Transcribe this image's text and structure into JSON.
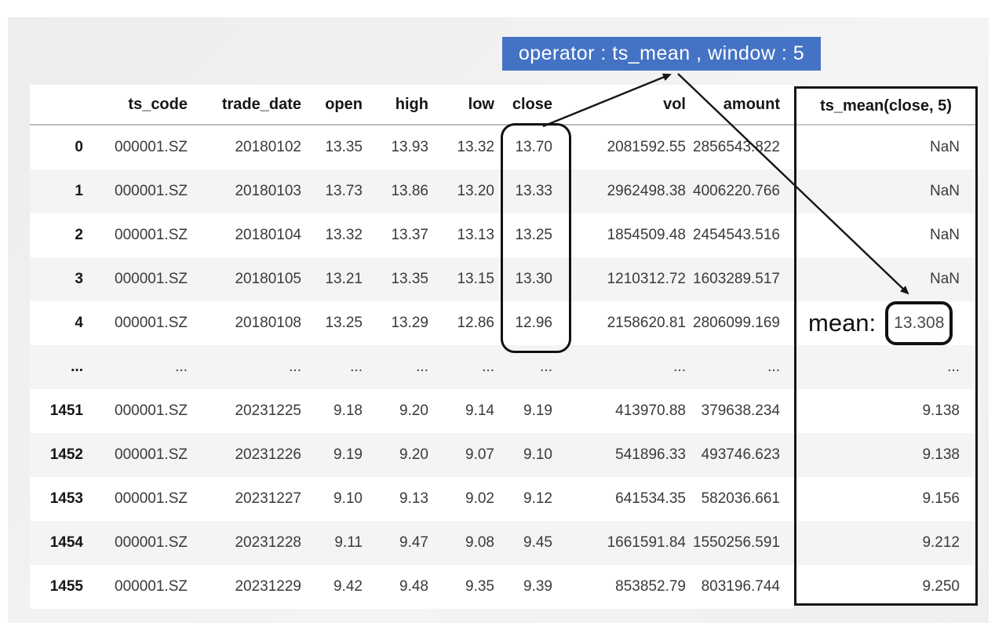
{
  "annotation": {
    "operator_text": "operator : ts_mean ,  window :  5",
    "mean_label": "mean:",
    "mean_value": "13.308"
  },
  "derived_column": {
    "header": "ts_mean(close, 5)"
  },
  "table": {
    "columns": [
      {
        "key": "index",
        "label": ""
      },
      {
        "key": "ts_code",
        "label": "ts_code"
      },
      {
        "key": "trade_date",
        "label": "trade_date"
      },
      {
        "key": "open",
        "label": "open"
      },
      {
        "key": "high",
        "label": "high"
      },
      {
        "key": "low",
        "label": "low"
      },
      {
        "key": "close",
        "label": "close"
      },
      {
        "key": "vol",
        "label": "vol"
      },
      {
        "key": "amount",
        "label": "amount"
      }
    ],
    "rows": [
      {
        "index": "0",
        "ts_code": "000001.SZ",
        "trade_date": "20180102",
        "open": "13.35",
        "high": "13.93",
        "low": "13.32",
        "close": "13.70",
        "vol": "2081592.55",
        "amount": "2856543.822",
        "ts_mean": "NaN"
      },
      {
        "index": "1",
        "ts_code": "000001.SZ",
        "trade_date": "20180103",
        "open": "13.73",
        "high": "13.86",
        "low": "13.20",
        "close": "13.33",
        "vol": "2962498.38",
        "amount": "4006220.766",
        "ts_mean": "NaN"
      },
      {
        "index": "2",
        "ts_code": "000001.SZ",
        "trade_date": "20180104",
        "open": "13.32",
        "high": "13.37",
        "low": "13.13",
        "close": "13.25",
        "vol": "1854509.48",
        "amount": "2454543.516",
        "ts_mean": "NaN"
      },
      {
        "index": "3",
        "ts_code": "000001.SZ",
        "trade_date": "20180105",
        "open": "13.21",
        "high": "13.35",
        "low": "13.15",
        "close": "13.30",
        "vol": "1210312.72",
        "amount": "1603289.517",
        "ts_mean": "NaN"
      },
      {
        "index": "4",
        "ts_code": "000001.SZ",
        "trade_date": "20180108",
        "open": "13.25",
        "high": "13.29",
        "low": "12.86",
        "close": "12.96",
        "vol": "2158620.81",
        "amount": "2806099.169",
        "ts_mean": "13.308"
      },
      {
        "index": "...",
        "ts_code": "...",
        "trade_date": "...",
        "open": "...",
        "high": "...",
        "low": "...",
        "close": "...",
        "vol": "...",
        "amount": "...",
        "ts_mean": "..."
      },
      {
        "index": "1451",
        "ts_code": "000001.SZ",
        "trade_date": "20231225",
        "open": "9.18",
        "high": "9.20",
        "low": "9.14",
        "close": "9.19",
        "vol": "413970.88",
        "amount": "379638.234",
        "ts_mean": "9.138"
      },
      {
        "index": "1452",
        "ts_code": "000001.SZ",
        "trade_date": "20231226",
        "open": "9.19",
        "high": "9.20",
        "low": "9.07",
        "close": "9.10",
        "vol": "541896.33",
        "amount": "493746.623",
        "ts_mean": "9.138"
      },
      {
        "index": "1453",
        "ts_code": "000001.SZ",
        "trade_date": "20231227",
        "open": "9.10",
        "high": "9.13",
        "low": "9.02",
        "close": "9.12",
        "vol": "641534.35",
        "amount": "582036.661",
        "ts_mean": "9.156"
      },
      {
        "index": "1454",
        "ts_code": "000001.SZ",
        "trade_date": "20231228",
        "open": "9.11",
        "high": "9.47",
        "low": "9.08",
        "close": "9.45",
        "vol": "1661591.84",
        "amount": "1550256.591",
        "ts_mean": "9.212"
      },
      {
        "index": "1455",
        "ts_code": "000001.SZ",
        "trade_date": "20231229",
        "open": "9.42",
        "high": "9.48",
        "low": "9.35",
        "close": "9.39",
        "vol": "853852.79",
        "amount": "803196.744",
        "ts_mean": "9.250"
      }
    ]
  },
  "colors": {
    "banner_blue": "#4473c5",
    "row_stripe": "#f4f4f5",
    "outline_black": "#111111"
  }
}
